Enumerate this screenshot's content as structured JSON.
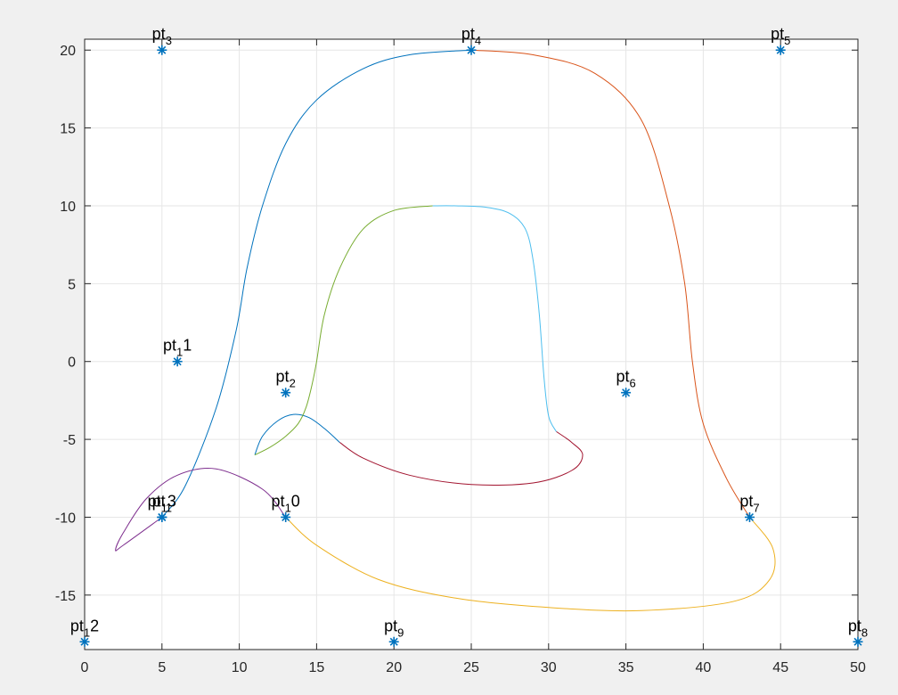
{
  "chart_data": {
    "type": "line",
    "title": "",
    "xlabel": "",
    "ylabel": "",
    "xlim": [
      0,
      50
    ],
    "ylim": [
      -18.5,
      20.7
    ],
    "xticks": [
      0,
      5,
      10,
      15,
      20,
      25,
      30,
      35,
      40,
      45,
      50
    ],
    "yticks": [
      -15,
      -10,
      -5,
      0,
      5,
      10,
      15,
      20
    ],
    "xtick_labels": [
      "0",
      "5",
      "10",
      "15",
      "20",
      "25",
      "30",
      "35",
      "40",
      "45",
      "50"
    ],
    "ytick_labels": [
      "-15",
      "-10",
      "-5",
      "0",
      "5",
      "10",
      "15",
      "20"
    ],
    "grid": true,
    "box": "on",
    "marker": "*",
    "marker_color": "#0072BD",
    "control_points": [
      {
        "label": "pt",
        "sub": "1",
        "x": 5,
        "y": -10
      },
      {
        "label": "pt",
        "sub": "3",
        "x": 5,
        "y": 20
      },
      {
        "label": "pt",
        "sub": "4",
        "x": 25,
        "y": 20
      },
      {
        "label": "pt",
        "sub": "5",
        "x": 45,
        "y": 20
      },
      {
        "label": "pt",
        "sub": "6",
        "x": 35,
        "y": -2
      },
      {
        "label": "pt",
        "sub": "7",
        "x": 43,
        "y": -10
      },
      {
        "label": "pt",
        "sub": "8",
        "x": 50,
        "y": -18
      },
      {
        "label": "pt",
        "sub": "9",
        "x": 20,
        "y": -18
      },
      {
        "label": "pt",
        "sub": "1",
        "after": "0",
        "x": 13,
        "y": -10
      },
      {
        "label": "pt",
        "sub": "1",
        "after": "1",
        "x": 6,
        "y": 0
      },
      {
        "label": "pt",
        "sub": "2",
        "x": 13,
        "y": -2
      },
      {
        "label": "pt",
        "sub": "1",
        "after": "2",
        "x": 0,
        "y": -18
      },
      {
        "label": "pt",
        "sub": "1",
        "after": "3",
        "x": 5,
        "y": -10
      }
    ],
    "series": [
      {
        "color": "#0072BD",
        "x": [
          5,
          6.5,
          8.5,
          9.8,
          10.5,
          11.5,
          13,
          15,
          18,
          21,
          25
        ],
        "y": [
          -10,
          -8,
          -3,
          2,
          6,
          10,
          14,
          16.8,
          18.8,
          19.7,
          20
        ]
      },
      {
        "color": "#D95319",
        "x": [
          25,
          29,
          33,
          36,
          37.8,
          38.8,
          39.3,
          40,
          41.5,
          43
        ],
        "y": [
          20,
          19.7,
          18.5,
          15.5,
          10,
          5,
          0,
          -4,
          -7.5,
          -10
        ]
      },
      {
        "color": "#EDB120",
        "x": [
          43,
          44.5,
          44.3,
          42,
          36,
          30,
          24,
          19,
          15,
          13
        ],
        "y": [
          -10,
          -12,
          -14,
          -15.4,
          -16,
          -15.8,
          -15.2,
          -14,
          -11.8,
          -10
        ]
      },
      {
        "color": "#7E2F8E",
        "x": [
          13,
          11.5,
          8.5,
          6,
          4,
          2.5,
          2,
          2.5,
          5
        ],
        "y": [
          -10,
          -8.2,
          -6.9,
          -7.3,
          -8.8,
          -11,
          -12.1,
          -11.8,
          -10
        ]
      },
      {
        "color": "#0072BD",
        "x": [
          11,
          11.5,
          12.5,
          13.5,
          14.5,
          15.5,
          16.5
        ],
        "y": [
          -6,
          -4.8,
          -3.8,
          -3.4,
          -3.6,
          -4.3,
          -5.2
        ]
      },
      {
        "color": "#A2142F",
        "x": [
          16.5,
          18,
          21,
          25,
          29,
          31.5,
          32.2,
          31.5,
          30.5
        ],
        "y": [
          -5.2,
          -6.2,
          -7.3,
          -7.9,
          -7.8,
          -7,
          -6,
          -5.2,
          -4.5
        ]
      },
      {
        "color": "#4DBEEE",
        "x": [
          30.5,
          30,
          29.7,
          29.4,
          29,
          28.5,
          27.5,
          26,
          24,
          22.5
        ],
        "y": [
          -4.5,
          -3.5,
          -1,
          3,
          6.5,
          8.5,
          9.5,
          9.9,
          10,
          10
        ]
      },
      {
        "color": "#77AC30",
        "x": [
          22.5,
          20,
          18,
          16.5,
          15.5,
          15,
          14.7,
          14.3,
          13.8,
          13,
          12,
          11
        ],
        "y": [
          10,
          9.7,
          8.5,
          6,
          3,
          0,
          -1.5,
          -3,
          -4,
          -4.8,
          -5.5,
          -6
        ]
      }
    ]
  }
}
